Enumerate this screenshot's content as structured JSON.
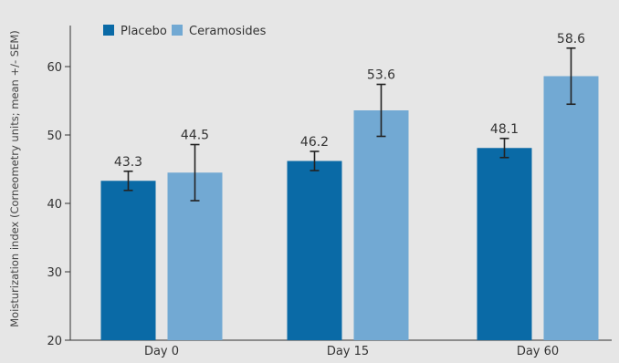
{
  "chart_data": {
    "type": "bar",
    "categories": [
      "Day 0",
      "Day 15",
      "Day 60"
    ],
    "series": [
      {
        "name": "Placebo",
        "values": [
          43.3,
          46.2,
          48.1
        ],
        "errors": [
          1.4,
          1.4,
          1.4
        ],
        "labels": [
          "43.3",
          "46.2",
          "48.1"
        ],
        "color": "#0a6aa6"
      },
      {
        "name": "Ceramosides",
        "values": [
          44.5,
          53.6,
          58.6
        ],
        "errors": [
          4.1,
          3.8,
          4.1
        ],
        "labels": [
          "44.5",
          "53.6",
          "58.6"
        ],
        "color": "#72a9d3"
      }
    ],
    "ylabel": "Moisturization index (Corneometry units; mean +/- SEM)",
    "xlabel": "",
    "ylim": [
      20,
      65
    ],
    "yticks": [
      20,
      30,
      40,
      50,
      60
    ],
    "grid": false,
    "legend_position": "top-left",
    "background": "#e6e6e6",
    "axis_color": "#333333",
    "errorbar_color": "#222222"
  }
}
